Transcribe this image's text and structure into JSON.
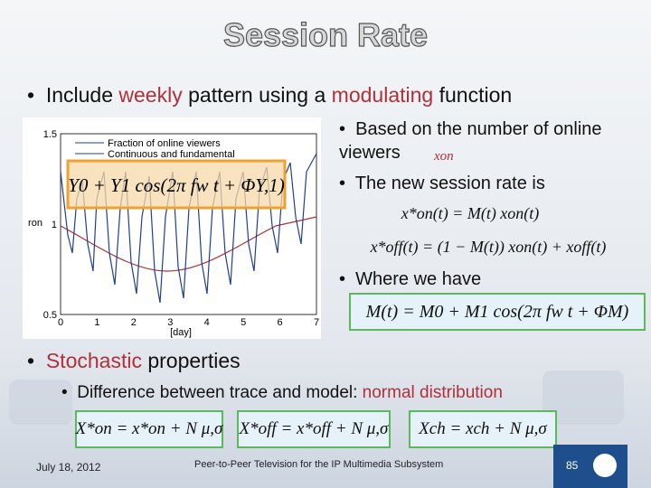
{
  "header": {
    "title": "Session Rate"
  },
  "bullets": [
    {
      "parts": [
        "Include ",
        "weekly",
        " pattern using a ",
        "modulating",
        " function"
      ]
    }
  ],
  "figure": {
    "legend": [
      "Fraction of online viewers",
      "Continuous and fundamental"
    ],
    "formula": "Y0 + Y1 cos(2π fw t + ΦY,1)",
    "yticks": [
      "1.5",
      "1",
      "0.5"
    ],
    "xticks": [
      "0",
      "1",
      "2",
      "3",
      "4",
      "5",
      "6",
      "7"
    ],
    "ylabel": "ron",
    "xlabel": "[day]"
  },
  "right": {
    "items": [
      "Based on the number of online viewers",
      "The new session rate is",
      "Where we have"
    ],
    "overlay": "xon",
    "formulas": [
      "x*on(t) = M(t) xon(t)",
      "x*off(t) = (1 − M(t)) xon(t) + xoff(t)",
      "M(t) = M0 + M1 cos(2π fw t + ΦM)"
    ]
  },
  "stochastic": {
    "parts": [
      "Stochastic",
      " properties"
    ],
    "sub": [
      "Difference between trace and model: ",
      "normal distribution"
    ],
    "formulas": [
      "X*on = x*on + N μ,σ",
      "X*off = x*off + N μ,σ",
      "Xch = xch + N μ,σ"
    ]
  },
  "footer": {
    "date": "July 18, 2012",
    "center": "Peer-to-Peer Television for the IP Multimedia Subsystem",
    "page": "85"
  }
}
